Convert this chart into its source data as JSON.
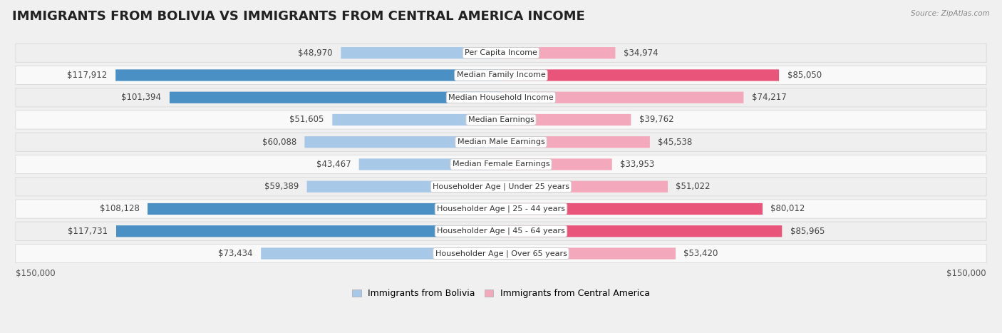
{
  "title": "IMMIGRANTS FROM BOLIVIA VS IMMIGRANTS FROM CENTRAL AMERICA INCOME",
  "source": "Source: ZipAtlas.com",
  "categories": [
    "Per Capita Income",
    "Median Family Income",
    "Median Household Income",
    "Median Earnings",
    "Median Male Earnings",
    "Median Female Earnings",
    "Householder Age | Under 25 years",
    "Householder Age | 25 - 44 years",
    "Householder Age | 45 - 64 years",
    "Householder Age | Over 65 years"
  ],
  "bolivia_values": [
    48970,
    117912,
    101394,
    51605,
    60088,
    43467,
    59389,
    108128,
    117731,
    73434
  ],
  "central_america_values": [
    34974,
    85050,
    74217,
    39762,
    45538,
    33953,
    51022,
    80012,
    85965,
    53420
  ],
  "bolivia_color_light": "#a8c8e8",
  "bolivia_color_dark": "#4a90c4",
  "central_america_color_light": "#f4a8bc",
  "central_america_color_dark": "#e8547a",
  "bolivia_label": "Immigrants from Bolivia",
  "central_america_label": "Immigrants from Central America",
  "max_value": 150000,
  "background_color": "#f0f0f0",
  "row_bg_light": "#f8f8f8",
  "row_bg_dark": "#ebebeb",
  "title_fontsize": 13,
  "label_fontsize": 8.5,
  "value_fontsize": 8.5,
  "axis_label": "$150,000",
  "dark_threshold": 80000
}
